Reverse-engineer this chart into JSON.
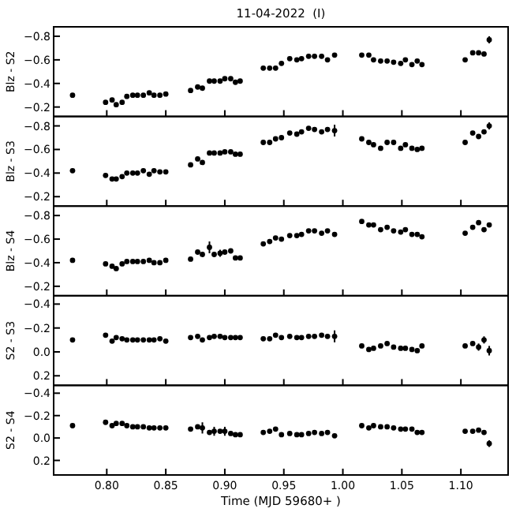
{
  "chart_data": [
    {
      "type": "scatter",
      "title": "11-04-2022  (I)",
      "ylabel": "Blz - S2",
      "marker": "circle",
      "tick_labels": "y",
      "xlim": [
        0.755,
        1.14
      ],
      "ylim": [
        -0.12,
        -0.88
      ],
      "xticks": [
        {
          "value": 0.8,
          "label": null
        },
        {
          "value": 0.85,
          "label": null
        },
        {
          "value": 0.9,
          "label": null
        },
        {
          "value": 0.95,
          "label": null
        },
        {
          "value": 1.0,
          "label": null
        },
        {
          "value": 1.05,
          "label": null
        },
        {
          "value": 1.1,
          "label": null
        }
      ],
      "yticks": [
        {
          "value": -0.8,
          "label": "−0.8"
        },
        {
          "value": -0.6,
          "label": "−0.6"
        },
        {
          "value": -0.4,
          "label": "−0.4"
        },
        {
          "value": -0.2,
          "label": "−0.2"
        }
      ],
      "x": [
        0.771,
        0.799,
        0.8045,
        0.808,
        0.813,
        0.817,
        0.822,
        0.826,
        0.831,
        0.836,
        0.84,
        0.845,
        0.85,
        0.871,
        0.877,
        0.881,
        0.887,
        0.891,
        0.896,
        0.9,
        0.905,
        0.909,
        0.913,
        0.9326,
        0.938,
        0.943,
        0.948,
        0.955,
        0.961,
        0.965,
        0.971,
        0.976,
        0.982,
        0.987,
        0.993,
        1.016,
        1.022,
        1.026,
        1.032,
        1.0375,
        1.043,
        1.049,
        1.053,
        1.0585,
        1.063,
        1.067,
        1.1036,
        1.11,
        1.115,
        1.1196,
        1.124
      ],
      "series": [
        {
          "color": "#000000",
          "values": [
            -0.3,
            -0.24,
            -0.26,
            -0.22,
            -0.24,
            -0.29,
            -0.3,
            -0.3,
            -0.3,
            -0.32,
            -0.3,
            -0.3,
            -0.31,
            -0.34,
            -0.37,
            -0.36,
            -0.42,
            -0.42,
            -0.42,
            -0.44,
            -0.44,
            -0.41,
            -0.42,
            -0.53,
            -0.53,
            -0.53,
            -0.57,
            -0.61,
            -0.6,
            -0.61,
            -0.63,
            -0.63,
            -0.63,
            -0.6,
            -0.64,
            -0.64,
            -0.64,
            -0.6,
            -0.59,
            -0.59,
            -0.58,
            -0.57,
            -0.6,
            -0.56,
            -0.59,
            -0.56,
            -0.6,
            -0.66,
            -0.66,
            -0.65,
            -0.77
          ],
          "errors": [
            null,
            null,
            null,
            null,
            null,
            null,
            null,
            null,
            null,
            null,
            null,
            null,
            null,
            null,
            null,
            null,
            null,
            null,
            null,
            null,
            null,
            null,
            null,
            null,
            null,
            null,
            null,
            null,
            null,
            null,
            null,
            null,
            null,
            null,
            null,
            null,
            null,
            null,
            null,
            null,
            null,
            null,
            null,
            null,
            null,
            null,
            null,
            null,
            null,
            null,
            0.03
          ]
        }
      ]
    },
    {
      "type": "scatter",
      "ylabel": "Blz - S3",
      "marker": "circle",
      "tick_labels": "y",
      "xlim": [
        0.755,
        1.14
      ],
      "ylim": [
        -0.12,
        -0.88
      ],
      "xticks": [
        {
          "value": 0.8,
          "label": null
        },
        {
          "value": 0.85,
          "label": null
        },
        {
          "value": 0.9,
          "label": null
        },
        {
          "value": 0.95,
          "label": null
        },
        {
          "value": 1.0,
          "label": null
        },
        {
          "value": 1.05,
          "label": null
        },
        {
          "value": 1.1,
          "label": null
        }
      ],
      "yticks": [
        {
          "value": -0.8,
          "label": "−0.8"
        },
        {
          "value": -0.6,
          "label": "−0.6"
        },
        {
          "value": -0.4,
          "label": "−0.4"
        },
        {
          "value": -0.2,
          "label": "−0.2"
        }
      ],
      "x": [
        0.771,
        0.799,
        0.8045,
        0.808,
        0.813,
        0.817,
        0.822,
        0.826,
        0.831,
        0.836,
        0.84,
        0.845,
        0.85,
        0.871,
        0.877,
        0.881,
        0.887,
        0.891,
        0.896,
        0.9,
        0.905,
        0.909,
        0.913,
        0.9326,
        0.938,
        0.943,
        0.948,
        0.955,
        0.961,
        0.965,
        0.971,
        0.976,
        0.982,
        0.987,
        0.993,
        1.016,
        1.022,
        1.026,
        1.032,
        1.0375,
        1.043,
        1.049,
        1.053,
        1.0585,
        1.063,
        1.067,
        1.1036,
        1.11,
        1.115,
        1.1196,
        1.124
      ],
      "series": [
        {
          "color": "#000000",
          "values": [
            -0.42,
            -0.38,
            -0.35,
            -0.35,
            -0.37,
            -0.4,
            -0.4,
            -0.4,
            -0.42,
            -0.39,
            -0.42,
            -0.41,
            -0.41,
            -0.47,
            -0.52,
            -0.49,
            -0.57,
            -0.57,
            -0.57,
            -0.58,
            -0.58,
            -0.56,
            -0.56,
            -0.66,
            -0.66,
            -0.69,
            -0.7,
            -0.74,
            -0.73,
            -0.75,
            -0.78,
            -0.77,
            -0.75,
            -0.77,
            -0.76,
            -0.69,
            -0.66,
            -0.64,
            -0.61,
            -0.66,
            -0.66,
            -0.61,
            -0.64,
            -0.61,
            -0.6,
            -0.61,
            -0.66,
            -0.74,
            -0.71,
            -0.75,
            -0.8
          ],
          "errors": [
            null,
            null,
            null,
            null,
            null,
            null,
            null,
            null,
            null,
            null,
            null,
            null,
            null,
            null,
            null,
            null,
            null,
            null,
            null,
            null,
            null,
            null,
            null,
            null,
            null,
            null,
            null,
            null,
            null,
            null,
            null,
            null,
            null,
            null,
            0.05,
            null,
            null,
            null,
            null,
            null,
            null,
            null,
            null,
            null,
            null,
            null,
            null,
            null,
            null,
            null,
            0.03
          ]
        }
      ]
    },
    {
      "type": "scatter",
      "ylabel": "Blz - S4",
      "marker": "circle",
      "tick_labels": "y",
      "xlim": [
        0.755,
        1.14
      ],
      "ylim": [
        -0.12,
        -0.88
      ],
      "xticks": [
        {
          "value": 0.8,
          "label": null
        },
        {
          "value": 0.85,
          "label": null
        },
        {
          "value": 0.9,
          "label": null
        },
        {
          "value": 0.95,
          "label": null
        },
        {
          "value": 1.0,
          "label": null
        },
        {
          "value": 1.05,
          "label": null
        },
        {
          "value": 1.1,
          "label": null
        }
      ],
      "yticks": [
        {
          "value": -0.8,
          "label": "−0.8"
        },
        {
          "value": -0.6,
          "label": "−0.6"
        },
        {
          "value": -0.4,
          "label": "−0.4"
        },
        {
          "value": -0.2,
          "label": "−0.2"
        }
      ],
      "x": [
        0.771,
        0.799,
        0.8045,
        0.808,
        0.813,
        0.817,
        0.822,
        0.826,
        0.831,
        0.836,
        0.84,
        0.845,
        0.85,
        0.871,
        0.877,
        0.881,
        0.887,
        0.891,
        0.896,
        0.9,
        0.905,
        0.909,
        0.913,
        0.9326,
        0.938,
        0.943,
        0.948,
        0.955,
        0.961,
        0.965,
        0.971,
        0.976,
        0.982,
        0.987,
        0.993,
        1.016,
        1.022,
        1.026,
        1.032,
        1.0375,
        1.043,
        1.049,
        1.053,
        1.0585,
        1.063,
        1.067,
        1.1036,
        1.11,
        1.115,
        1.1196,
        1.124
      ],
      "series": [
        {
          "color": "#000000",
          "values": [
            -0.42,
            -0.39,
            -0.37,
            -0.35,
            -0.39,
            -0.41,
            -0.41,
            -0.41,
            -0.41,
            -0.42,
            -0.4,
            -0.4,
            -0.42,
            -0.43,
            -0.49,
            -0.47,
            -0.53,
            -0.47,
            -0.48,
            -0.49,
            -0.5,
            -0.44,
            -0.44,
            -0.56,
            -0.58,
            -0.61,
            -0.6,
            -0.63,
            -0.63,
            -0.64,
            -0.67,
            -0.67,
            -0.65,
            -0.67,
            -0.64,
            -0.75,
            -0.72,
            -0.72,
            -0.68,
            -0.7,
            -0.67,
            -0.66,
            -0.68,
            -0.64,
            -0.64,
            -0.62,
            -0.65,
            -0.7,
            -0.74,
            -0.68,
            -0.72
          ],
          "errors": [
            null,
            null,
            null,
            null,
            null,
            null,
            null,
            null,
            null,
            null,
            null,
            null,
            null,
            null,
            null,
            null,
            0.05,
            null,
            0.03,
            null,
            null,
            null,
            null,
            null,
            null,
            null,
            null,
            null,
            null,
            null,
            null,
            null,
            null,
            null,
            null,
            null,
            null,
            null,
            null,
            null,
            null,
            null,
            null,
            null,
            null,
            null,
            null,
            null,
            null,
            null,
            null
          ]
        }
      ]
    },
    {
      "type": "scatter",
      "ylabel": "S2 - S3",
      "marker": "circle",
      "tick_labels": "y",
      "xlim": [
        0.755,
        1.14
      ],
      "ylim": [
        0.28,
        -0.47
      ],
      "xticks": [
        {
          "value": 0.8,
          "label": null
        },
        {
          "value": 0.85,
          "label": null
        },
        {
          "value": 0.9,
          "label": null
        },
        {
          "value": 0.95,
          "label": null
        },
        {
          "value": 1.0,
          "label": null
        },
        {
          "value": 1.05,
          "label": null
        },
        {
          "value": 1.1,
          "label": null
        }
      ],
      "yticks": [
        {
          "value": -0.4,
          "label": "−0.4"
        },
        {
          "value": -0.2,
          "label": "−0.2"
        },
        {
          "value": 0,
          "label": "0.0"
        },
        {
          "value": 0.2,
          "label": "0.2"
        }
      ],
      "x": [
        0.771,
        0.799,
        0.8045,
        0.808,
        0.813,
        0.817,
        0.822,
        0.826,
        0.831,
        0.836,
        0.84,
        0.845,
        0.85,
        0.871,
        0.877,
        0.881,
        0.887,
        0.891,
        0.896,
        0.9,
        0.905,
        0.909,
        0.913,
        0.9326,
        0.938,
        0.943,
        0.948,
        0.955,
        0.961,
        0.965,
        0.971,
        0.976,
        0.982,
        0.987,
        0.993,
        1.016,
        1.022,
        1.026,
        1.032,
        1.0375,
        1.043,
        1.049,
        1.053,
        1.0585,
        1.063,
        1.067,
        1.1036,
        1.11,
        1.115,
        1.1196,
        1.124
      ],
      "series": [
        {
          "color": "#000000",
          "values": [
            -0.1,
            -0.14,
            -0.09,
            -0.12,
            -0.11,
            -0.1,
            -0.1,
            -0.1,
            -0.1,
            -0.1,
            -0.1,
            -0.11,
            -0.09,
            -0.12,
            -0.13,
            -0.1,
            -0.12,
            -0.13,
            -0.13,
            -0.12,
            -0.12,
            -0.12,
            -0.12,
            -0.11,
            -0.11,
            -0.14,
            -0.12,
            -0.13,
            -0.12,
            -0.12,
            -0.13,
            -0.13,
            -0.14,
            -0.13,
            -0.13,
            -0.05,
            -0.02,
            -0.03,
            -0.05,
            -0.07,
            -0.04,
            -0.03,
            -0.03,
            -0.02,
            -0.01,
            -0.05,
            -0.05,
            -0.07,
            -0.04,
            -0.1,
            -0.01
          ],
          "errors": [
            null,
            null,
            null,
            null,
            null,
            null,
            null,
            null,
            null,
            null,
            null,
            null,
            null,
            null,
            null,
            null,
            null,
            null,
            null,
            null,
            null,
            null,
            null,
            null,
            null,
            null,
            null,
            null,
            null,
            null,
            null,
            null,
            null,
            null,
            0.05,
            null,
            null,
            null,
            null,
            null,
            null,
            null,
            null,
            null,
            null,
            null,
            null,
            null,
            0.03,
            0.03,
            0.04
          ]
        }
      ]
    },
    {
      "type": "scatter",
      "ylabel": "S2 - S4",
      "xlabel": "Time (MJD 59680+ )",
      "marker": "circle",
      "xlim": [
        0.755,
        1.14
      ],
      "ylim": [
        0.33,
        -0.47
      ],
      "xticks": [
        {
          "value": 0.8,
          "label": "0.80"
        },
        {
          "value": 0.85,
          "label": "0.85"
        },
        {
          "value": 0.9,
          "label": "0.90"
        },
        {
          "value": 0.95,
          "label": "0.95"
        },
        {
          "value": 1.0,
          "label": "1.00"
        },
        {
          "value": 1.05,
          "label": "1.05"
        },
        {
          "value": 1.1,
          "label": "1.10"
        }
      ],
      "yticks": [
        {
          "value": -0.4,
          "label": "−0.4"
        },
        {
          "value": -0.2,
          "label": "−0.2"
        },
        {
          "value": 0,
          "label": "0.0"
        },
        {
          "value": 0.2,
          "label": "0.2"
        }
      ],
      "x": [
        0.771,
        0.799,
        0.8045,
        0.808,
        0.813,
        0.817,
        0.822,
        0.826,
        0.831,
        0.836,
        0.84,
        0.845,
        0.85,
        0.871,
        0.877,
        0.881,
        0.887,
        0.891,
        0.896,
        0.9,
        0.905,
        0.909,
        0.913,
        0.9326,
        0.938,
        0.943,
        0.948,
        0.955,
        0.961,
        0.965,
        0.971,
        0.976,
        0.982,
        0.987,
        0.993,
        1.016,
        1.022,
        1.026,
        1.032,
        1.0375,
        1.043,
        1.049,
        1.053,
        1.0585,
        1.063,
        1.067,
        1.1036,
        1.11,
        1.115,
        1.1196,
        1.124
      ],
      "series": [
        {
          "color": "#000000",
          "values": [
            -0.11,
            -0.14,
            -0.11,
            -0.13,
            -0.13,
            -0.11,
            -0.1,
            -0.1,
            -0.1,
            -0.09,
            -0.09,
            -0.09,
            -0.09,
            -0.08,
            -0.1,
            -0.09,
            -0.05,
            -0.06,
            -0.06,
            -0.06,
            -0.04,
            -0.03,
            -0.03,
            -0.05,
            -0.06,
            -0.08,
            -0.03,
            -0.04,
            -0.03,
            -0.03,
            -0.04,
            -0.05,
            -0.04,
            -0.05,
            -0.02,
            -0.11,
            -0.09,
            -0.11,
            -0.1,
            -0.1,
            -0.09,
            -0.08,
            -0.08,
            -0.08,
            -0.05,
            -0.05,
            -0.06,
            -0.06,
            -0.07,
            -0.05,
            0.05
          ],
          "errors": [
            null,
            null,
            null,
            null,
            null,
            null,
            null,
            null,
            null,
            null,
            null,
            null,
            null,
            null,
            null,
            0.05,
            null,
            0.04,
            null,
            0.04,
            null,
            null,
            null,
            null,
            null,
            null,
            null,
            null,
            null,
            null,
            null,
            null,
            null,
            null,
            null,
            null,
            null,
            null,
            null,
            null,
            null,
            null,
            null,
            null,
            null,
            null,
            null,
            null,
            null,
            null,
            0.03
          ]
        }
      ]
    }
  ]
}
